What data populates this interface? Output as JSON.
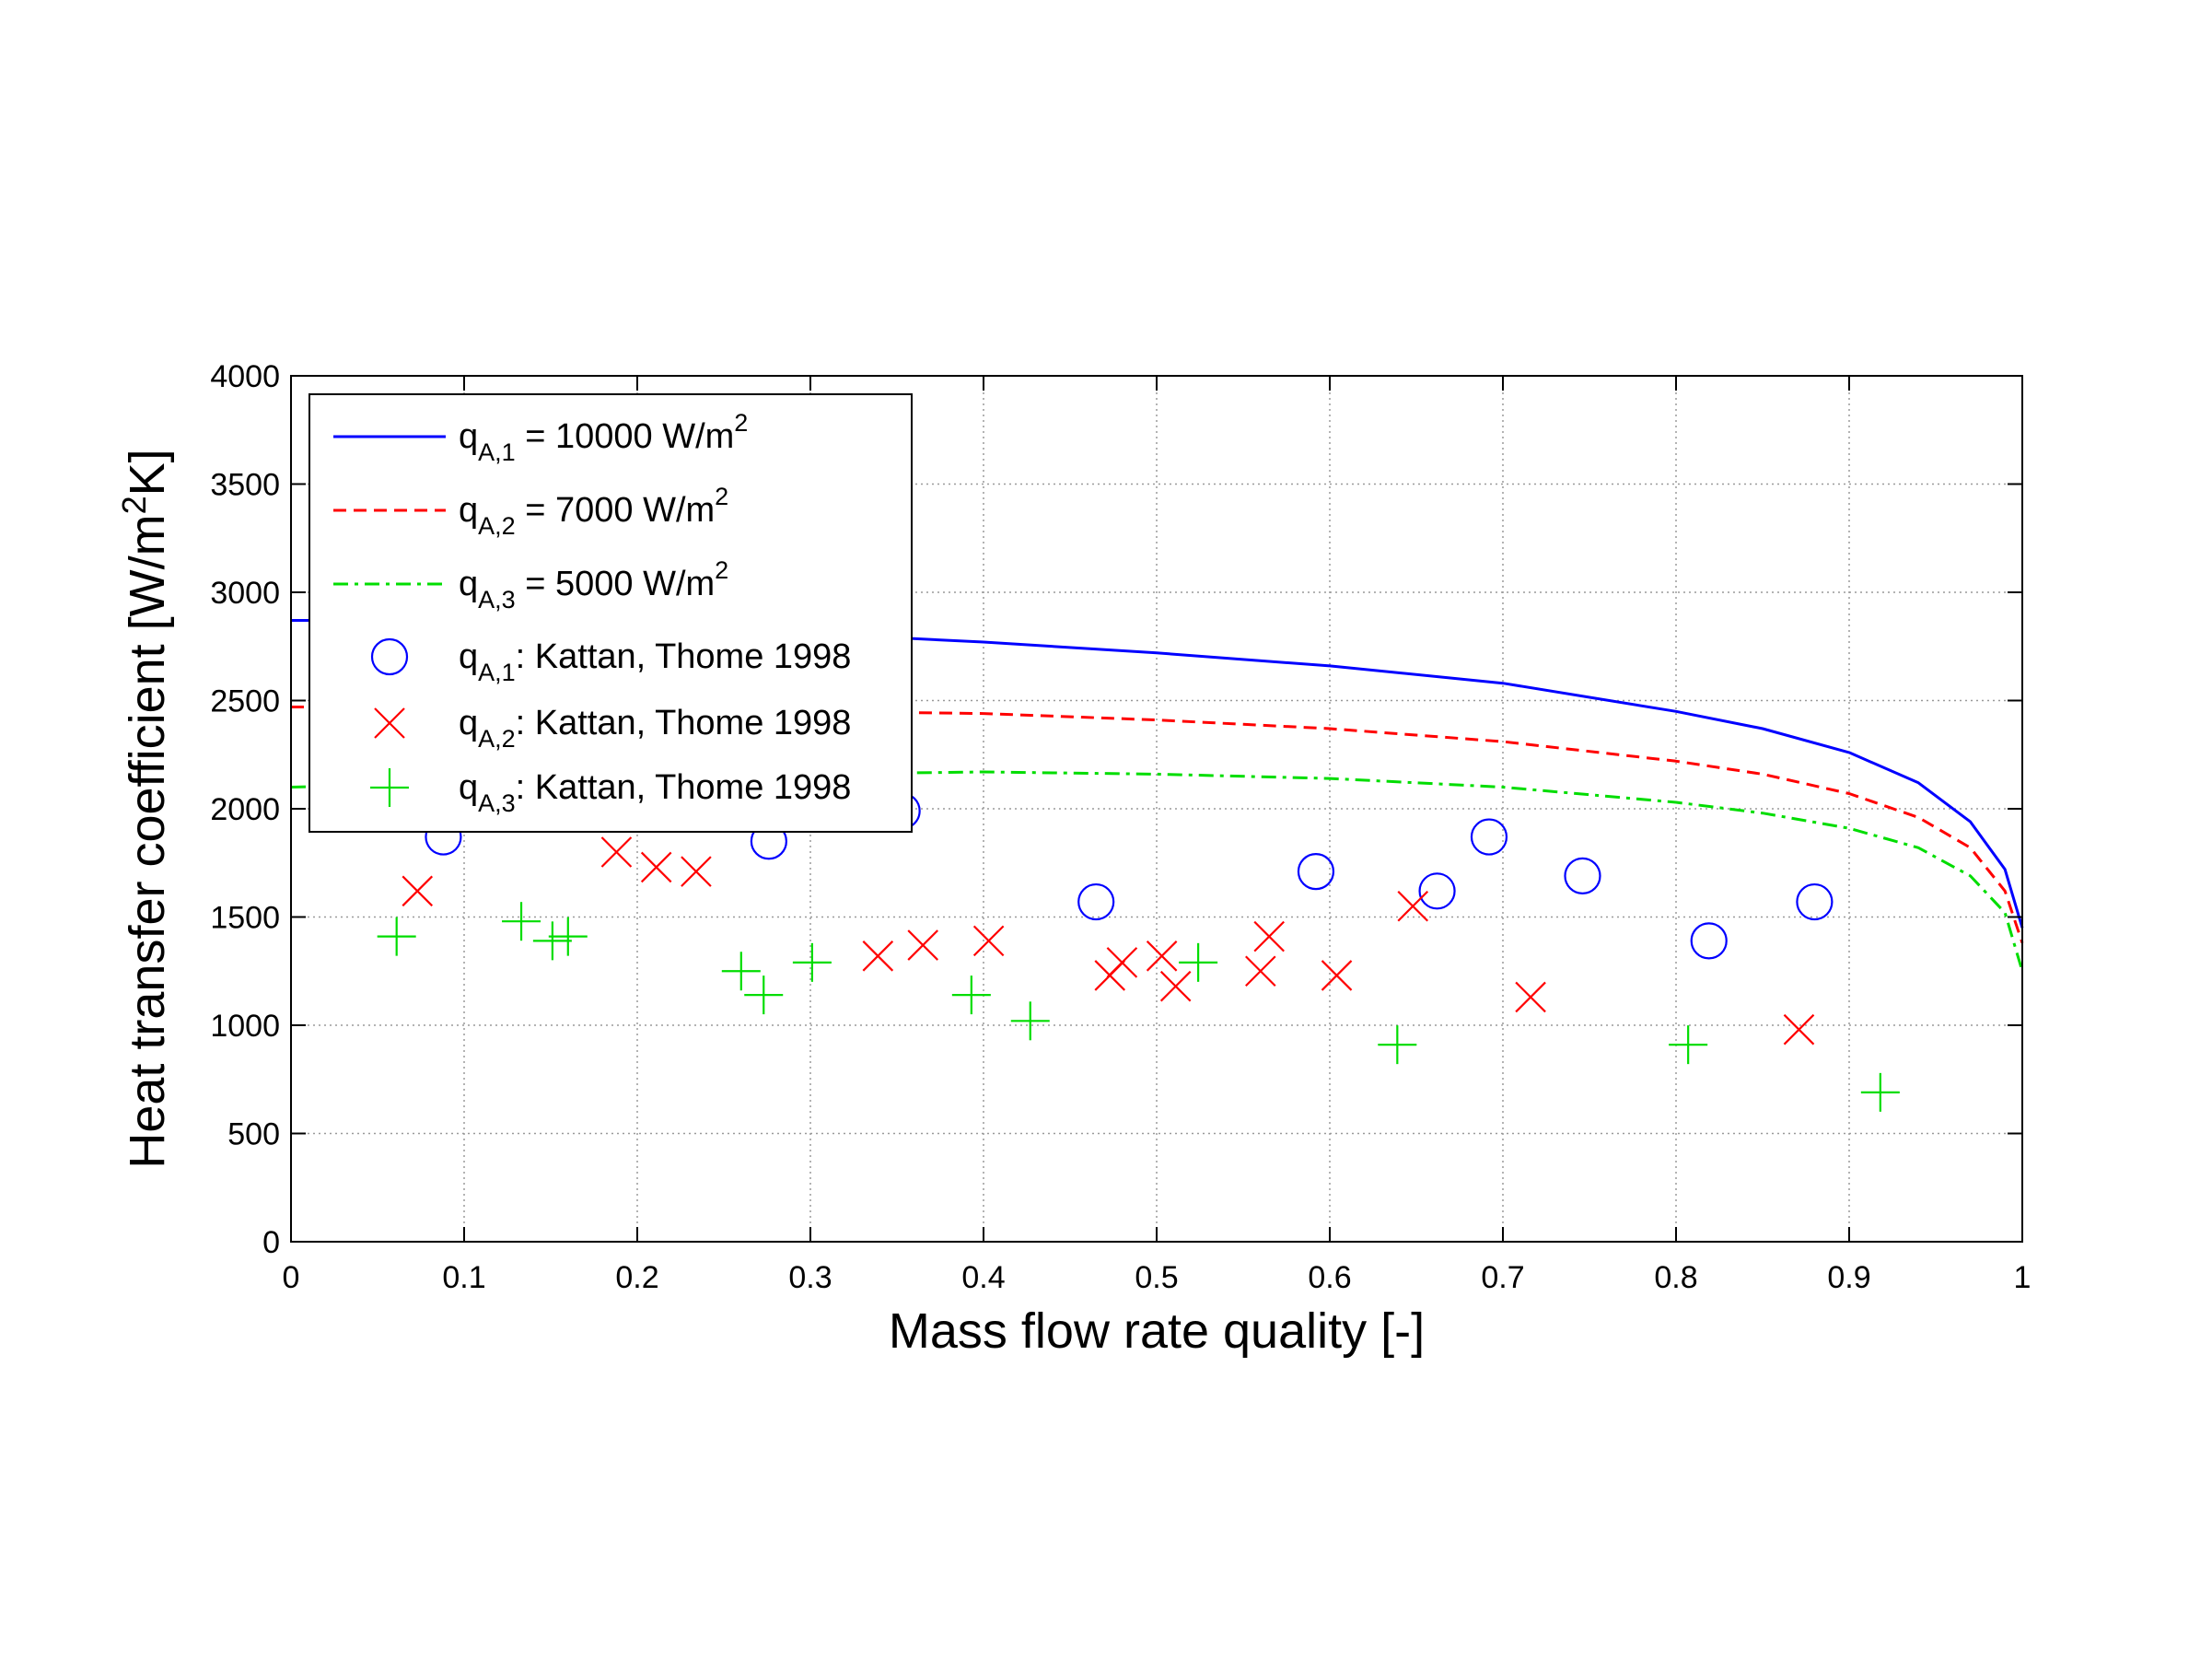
{
  "chart_data": {
    "type": "line",
    "title": "",
    "xlabel": "Mass flow rate quality [-]",
    "ylabel": {
      "main": "Heat transfer coefficient [W/m",
      "sup": "2",
      "tail": "K]"
    },
    "xlim": [
      0,
      1
    ],
    "ylim": [
      0,
      4000
    ],
    "grid": true,
    "legend_position": "top-left",
    "x_ticks": [
      "0",
      "0.1",
      "0.2",
      "0.3",
      "0.4",
      "0.5",
      "0.6",
      "0.7",
      "0.8",
      "0.9",
      "1"
    ],
    "y_ticks": [
      "0",
      "500",
      "1000",
      "1500",
      "2000",
      "2500",
      "3000",
      "3500",
      "4000"
    ],
    "x_tick_values": [
      0,
      0.1,
      0.2,
      0.3,
      0.4,
      0.5,
      0.6,
      0.7,
      0.8,
      0.9,
      1
    ],
    "y_tick_values": [
      0,
      500,
      1000,
      1500,
      2000,
      2500,
      3000,
      3500,
      4000
    ],
    "series": [
      {
        "name": "qA,1 = 10000 W/m2",
        "label": {
          "q": "q",
          "sub": "A,1",
          "text": " = 10000 W/m",
          "sup": "2"
        },
        "kind": "line",
        "style": "solid",
        "color": "#0000ff",
        "x": [
          0,
          0.05,
          0.1,
          0.2,
          0.3,
          0.35,
          0.4,
          0.5,
          0.6,
          0.7,
          0.8,
          0.85,
          0.9,
          0.94,
          0.97,
          0.99,
          1.0
        ],
        "y": [
          2870,
          2870,
          2860,
          2830,
          2800,
          2790,
          2770,
          2720,
          2660,
          2580,
          2450,
          2370,
          2260,
          2120,
          1940,
          1720,
          1450
        ]
      },
      {
        "name": "qA,2 = 7000 W/m2",
        "label": {
          "q": "q",
          "sub": "A,2",
          "text": " =  7000 W/m",
          "sup": "2"
        },
        "kind": "line",
        "style": "dashed",
        "color": "#ff0000",
        "x": [
          0,
          0.05,
          0.1,
          0.2,
          0.3,
          0.4,
          0.5,
          0.6,
          0.7,
          0.8,
          0.85,
          0.9,
          0.94,
          0.97,
          0.99,
          1.0
        ],
        "y": [
          2470,
          2470,
          2470,
          2460,
          2450,
          2440,
          2410,
          2370,
          2310,
          2220,
          2160,
          2070,
          1960,
          1820,
          1620,
          1380
        ]
      },
      {
        "name": "qA,3 = 5000 W/m2",
        "label": {
          "q": "q",
          "sub": "A,3",
          "text": " =  5000 W/m",
          "sup": "2"
        },
        "kind": "line",
        "style": "dashdot",
        "color": "#00dd00",
        "x": [
          0,
          0.1,
          0.2,
          0.3,
          0.4,
          0.5,
          0.6,
          0.7,
          0.8,
          0.85,
          0.9,
          0.94,
          0.97,
          0.99,
          1.0
        ],
        "y": [
          2100,
          2120,
          2150,
          2160,
          2170,
          2160,
          2140,
          2100,
          2030,
          1980,
          1910,
          1820,
          1690,
          1520,
          1250
        ]
      },
      {
        "name": "qA,1: Kattan, Thome 1998",
        "label": {
          "q": "q",
          "sub": "A,1",
          "text": ": Kattan, Thome 1998"
        },
        "kind": "scatter",
        "marker": "circle",
        "color": "#0000ff",
        "x": [
          0.088,
          0.276,
          0.353,
          0.465,
          0.592,
          0.662,
          0.692,
          0.746,
          0.819,
          0.88
        ],
        "y": [
          1870,
          1850,
          1990,
          1570,
          1710,
          1620,
          1870,
          1690,
          1390,
          1570
        ]
      },
      {
        "name": "qA,2: Kattan, Thome 1998",
        "label": {
          "q": "q",
          "sub": "A,2",
          "text": ": Kattan, Thome 1998"
        },
        "kind": "scatter",
        "marker": "x",
        "color": "#ff0000",
        "x": [
          0.073,
          0.188,
          0.211,
          0.234,
          0.339,
          0.365,
          0.403,
          0.473,
          0.48,
          0.503,
          0.511,
          0.56,
          0.565,
          0.604,
          0.648,
          0.716,
          0.871
        ],
        "y": [
          1620,
          1800,
          1730,
          1710,
          1320,
          1370,
          1390,
          1230,
          1290,
          1320,
          1180,
          1250,
          1410,
          1230,
          1550,
          1130,
          980
        ]
      },
      {
        "name": "qA,3: Kattan, Thome 1998",
        "label": {
          "q": "q",
          "sub": "A,3",
          "text": ": Kattan, Thome 1998"
        },
        "kind": "scatter",
        "marker": "plus",
        "color": "#00dd00",
        "x": [
          0.061,
          0.133,
          0.151,
          0.16,
          0.26,
          0.273,
          0.301,
          0.393,
          0.427,
          0.524,
          0.639,
          0.807,
          0.918
        ],
        "y": [
          1410,
          1480,
          1390,
          1410,
          1250,
          1140,
          1290,
          1140,
          1020,
          1290,
          910,
          910,
          690
        ]
      }
    ]
  }
}
